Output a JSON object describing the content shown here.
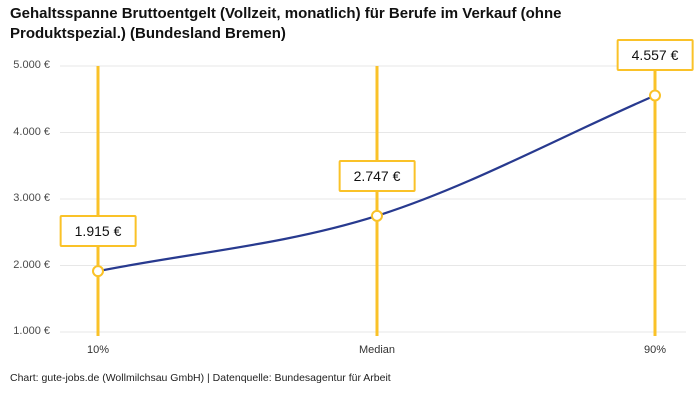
{
  "title": "Gehaltsspanne Bruttoentgelt (Vollzeit, monatlich) für Berufe im Verkauf (ohne Produktspezial.) (Bundesland Bremen)",
  "footer": "Chart: gute-jobs.de (Wollmilchsau GmbH) | Datenquelle: Bundesagentur für Arbeit",
  "colors": {
    "accent": "#FAC228",
    "line": "#283A8F",
    "grid": "#e7e7e7",
    "axis_text": "#4a4a4a",
    "text": "#111111"
  },
  "chart_data": {
    "type": "line",
    "title": "Gehaltsspanne Bruttoentgelt (Vollzeit, monatlich) für Berufe im Verkauf (ohne Produktspezial.) (Bundesland Bremen)",
    "categories": [
      "10%",
      "Median",
      "90%"
    ],
    "values": [
      1915,
      2747,
      4557
    ],
    "point_labels": [
      "1.915 €",
      "2.747 €",
      "4.557 €"
    ],
    "ylim": [
      1000,
      5000
    ],
    "yticks": [
      1000,
      2000,
      3000,
      4000,
      5000
    ],
    "ytick_labels": [
      "1.000 €",
      "2.000 €",
      "3.000 €",
      "4.000 €",
      "5.000 €"
    ],
    "grid": true,
    "legend": false,
    "source": "Chart: gute-jobs.de (Wollmilchsau GmbH) | Datenquelle: Bundesagentur für Arbeit"
  }
}
